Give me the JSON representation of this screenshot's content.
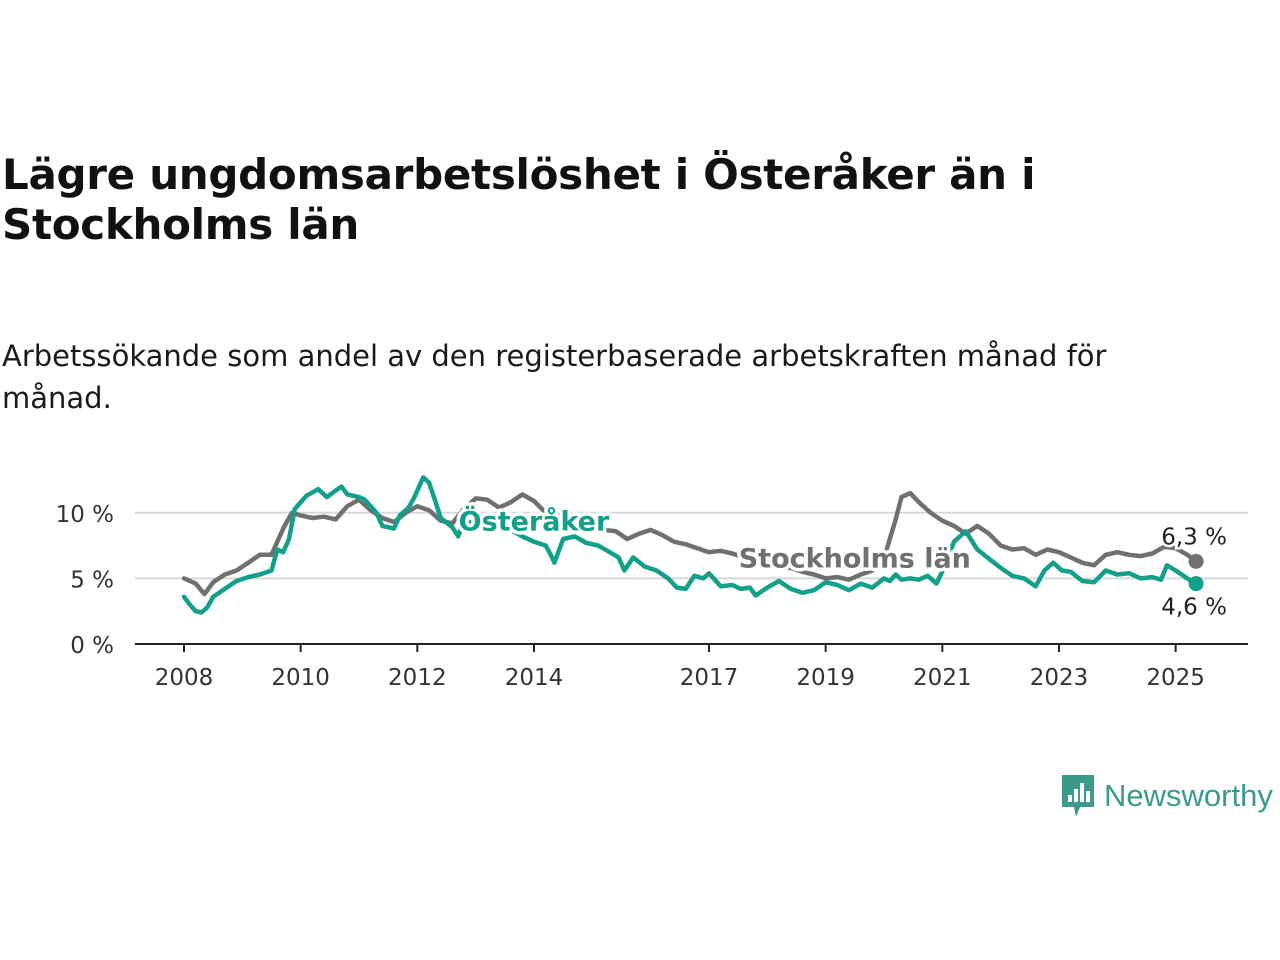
{
  "header": {
    "title": "Lägre ungdomsarbetslöshet i Österåker än i Stockholms län",
    "subtitle": "Arbetssökande som andel av den registerbaserade arbetskraften månad för månad."
  },
  "brand": {
    "name": "Newsworthy",
    "icon": "newsworthy-logo-icon",
    "color": "#3a9a8c"
  },
  "chart_data": {
    "type": "line",
    "xlim": [
      2008,
      2025.4
    ],
    "ylim": [
      0,
      12.5
    ],
    "x_ticks": [
      "2008",
      "2010",
      "2012",
      "2014",
      "2017",
      "2019",
      "2021",
      "2023",
      "2025"
    ],
    "y_ticks": [
      "0 %",
      "5 %",
      "10 %"
    ],
    "grid": true,
    "series": [
      {
        "name": "Stockholms län",
        "color": "#707070",
        "end_label": "6,3 %",
        "points": [
          [
            2008.0,
            5.0
          ],
          [
            2008.2,
            4.6
          ],
          [
            2008.35,
            3.8
          ],
          [
            2008.5,
            4.7
          ],
          [
            2008.7,
            5.3
          ],
          [
            2008.9,
            5.6
          ],
          [
            2009.1,
            6.2
          ],
          [
            2009.3,
            6.8
          ],
          [
            2009.5,
            6.8
          ],
          [
            2009.7,
            8.8
          ],
          [
            2009.85,
            10.0
          ],
          [
            2010.0,
            9.8
          ],
          [
            2010.2,
            9.6
          ],
          [
            2010.4,
            9.7
          ],
          [
            2010.6,
            9.5
          ],
          [
            2010.8,
            10.5
          ],
          [
            2011.0,
            11.0
          ],
          [
            2011.2,
            10.2
          ],
          [
            2011.4,
            9.6
          ],
          [
            2011.6,
            9.3
          ],
          [
            2011.8,
            10.0
          ],
          [
            2012.0,
            10.5
          ],
          [
            2012.2,
            10.2
          ],
          [
            2012.4,
            9.4
          ],
          [
            2012.6,
            9.2
          ],
          [
            2012.8,
            10.3
          ],
          [
            2013.0,
            11.1
          ],
          [
            2013.2,
            11.0
          ],
          [
            2013.4,
            10.4
          ],
          [
            2013.6,
            10.8
          ],
          [
            2013.8,
            11.4
          ],
          [
            2014.0,
            10.9
          ],
          [
            2014.2,
            10.0
          ],
          [
            2014.4,
            9.8
          ],
          [
            2014.6,
            9.6
          ],
          [
            2014.8,
            9.0
          ],
          [
            2015.0,
            8.8
          ],
          [
            2015.2,
            8.7
          ],
          [
            2015.4,
            8.6
          ],
          [
            2015.6,
            8.0
          ],
          [
            2015.8,
            8.4
          ],
          [
            2016.0,
            8.7
          ],
          [
            2016.2,
            8.3
          ],
          [
            2016.4,
            7.8
          ],
          [
            2016.6,
            7.6
          ],
          [
            2016.8,
            7.3
          ],
          [
            2017.0,
            7.0
          ],
          [
            2017.2,
            7.1
          ],
          [
            2017.4,
            6.9
          ],
          [
            2017.6,
            6.6
          ],
          [
            2017.8,
            6.4
          ],
          [
            2018.0,
            6.2
          ],
          [
            2018.2,
            5.9
          ],
          [
            2018.4,
            5.8
          ],
          [
            2018.6,
            5.5
          ],
          [
            2018.8,
            5.3
          ],
          [
            2019.0,
            5.0
          ],
          [
            2019.2,
            5.1
          ],
          [
            2019.4,
            4.9
          ],
          [
            2019.6,
            5.3
          ],
          [
            2019.8,
            5.6
          ],
          [
            2020.0,
            6.5
          ],
          [
            2020.1,
            8.0
          ],
          [
            2020.2,
            9.5
          ],
          [
            2020.3,
            11.2
          ],
          [
            2020.45,
            11.5
          ],
          [
            2020.6,
            10.8
          ],
          [
            2020.8,
            10.0
          ],
          [
            2021.0,
            9.4
          ],
          [
            2021.2,
            9.0
          ],
          [
            2021.4,
            8.4
          ],
          [
            2021.6,
            9.0
          ],
          [
            2021.8,
            8.4
          ],
          [
            2022.0,
            7.5
          ],
          [
            2022.2,
            7.2
          ],
          [
            2022.4,
            7.3
          ],
          [
            2022.6,
            6.8
          ],
          [
            2022.8,
            7.2
          ],
          [
            2023.0,
            7.0
          ],
          [
            2023.2,
            6.6
          ],
          [
            2023.4,
            6.2
          ],
          [
            2023.6,
            6.0
          ],
          [
            2023.8,
            6.8
          ],
          [
            2024.0,
            7.0
          ],
          [
            2024.2,
            6.8
          ],
          [
            2024.4,
            6.7
          ],
          [
            2024.6,
            6.9
          ],
          [
            2024.8,
            7.4
          ],
          [
            2025.0,
            7.3
          ],
          [
            2025.2,
            6.8
          ],
          [
            2025.35,
            6.3
          ]
        ]
      },
      {
        "name": "Österåker",
        "color": "#12a08a",
        "end_label": "4,6 %",
        "points": [
          [
            2008.0,
            3.6
          ],
          [
            2008.1,
            3.0
          ],
          [
            2008.2,
            2.5
          ],
          [
            2008.3,
            2.4
          ],
          [
            2008.4,
            2.8
          ],
          [
            2008.5,
            3.6
          ],
          [
            2008.7,
            4.2
          ],
          [
            2008.9,
            4.8
          ],
          [
            2009.1,
            5.1
          ],
          [
            2009.3,
            5.3
          ],
          [
            2009.5,
            5.6
          ],
          [
            2009.6,
            7.2
          ],
          [
            2009.7,
            7.0
          ],
          [
            2009.8,
            8.0
          ],
          [
            2009.9,
            10.3
          ],
          [
            2010.0,
            10.8
          ],
          [
            2010.1,
            11.3
          ],
          [
            2010.3,
            11.8
          ],
          [
            2010.45,
            11.2
          ],
          [
            2010.6,
            11.7
          ],
          [
            2010.7,
            12.0
          ],
          [
            2010.8,
            11.4
          ],
          [
            2011.0,
            11.2
          ],
          [
            2011.1,
            11.0
          ],
          [
            2011.3,
            10.0
          ],
          [
            2011.4,
            9.0
          ],
          [
            2011.5,
            8.9
          ],
          [
            2011.6,
            8.8
          ],
          [
            2011.7,
            9.8
          ],
          [
            2011.85,
            10.4
          ],
          [
            2011.95,
            11.2
          ],
          [
            2012.1,
            12.7
          ],
          [
            2012.2,
            12.3
          ],
          [
            2012.3,
            11.0
          ],
          [
            2012.4,
            9.6
          ],
          [
            2012.6,
            8.9
          ],
          [
            2012.7,
            8.2
          ],
          [
            2012.8,
            9.5
          ],
          [
            2013.0,
            9.0
          ],
          [
            2013.2,
            8.5
          ],
          [
            2013.4,
            9.4
          ],
          [
            2013.6,
            8.7
          ],
          [
            2013.8,
            8.2
          ],
          [
            2014.0,
            7.8
          ],
          [
            2014.2,
            7.5
          ],
          [
            2014.3,
            6.7
          ],
          [
            2014.35,
            6.2
          ],
          [
            2014.5,
            8.0
          ],
          [
            2014.7,
            8.2
          ],
          [
            2014.9,
            7.7
          ],
          [
            2015.1,
            7.5
          ],
          [
            2015.3,
            7.0
          ],
          [
            2015.45,
            6.6
          ],
          [
            2015.55,
            5.6
          ],
          [
            2015.7,
            6.6
          ],
          [
            2015.9,
            5.9
          ],
          [
            2016.1,
            5.6
          ],
          [
            2016.3,
            5.0
          ],
          [
            2016.45,
            4.3
          ],
          [
            2016.6,
            4.2
          ],
          [
            2016.75,
            5.2
          ],
          [
            2016.9,
            5.0
          ],
          [
            2017.0,
            5.4
          ],
          [
            2017.2,
            4.4
          ],
          [
            2017.4,
            4.5
          ],
          [
            2017.55,
            4.2
          ],
          [
            2017.7,
            4.3
          ],
          [
            2017.8,
            3.7
          ],
          [
            2018.0,
            4.3
          ],
          [
            2018.2,
            4.8
          ],
          [
            2018.4,
            4.2
          ],
          [
            2018.6,
            3.9
          ],
          [
            2018.8,
            4.1
          ],
          [
            2019.0,
            4.7
          ],
          [
            2019.2,
            4.5
          ],
          [
            2019.4,
            4.1
          ],
          [
            2019.6,
            4.6
          ],
          [
            2019.8,
            4.3
          ],
          [
            2020.0,
            5.0
          ],
          [
            2020.1,
            4.8
          ],
          [
            2020.2,
            5.3
          ],
          [
            2020.3,
            4.9
          ],
          [
            2020.45,
            5.0
          ],
          [
            2020.6,
            4.9
          ],
          [
            2020.75,
            5.2
          ],
          [
            2020.9,
            4.6
          ],
          [
            2021.05,
            6.0
          ],
          [
            2021.2,
            7.8
          ],
          [
            2021.4,
            8.6
          ],
          [
            2021.6,
            7.2
          ],
          [
            2021.8,
            6.5
          ],
          [
            2022.0,
            5.8
          ],
          [
            2022.2,
            5.2
          ],
          [
            2022.4,
            5.0
          ],
          [
            2022.6,
            4.4
          ],
          [
            2022.75,
            5.6
          ],
          [
            2022.9,
            6.2
          ],
          [
            2023.05,
            5.6
          ],
          [
            2023.2,
            5.5
          ],
          [
            2023.4,
            4.8
          ],
          [
            2023.6,
            4.7
          ],
          [
            2023.8,
            5.6
          ],
          [
            2024.0,
            5.3
          ],
          [
            2024.2,
            5.4
          ],
          [
            2024.4,
            5.0
          ],
          [
            2024.6,
            5.1
          ],
          [
            2024.75,
            4.9
          ],
          [
            2024.85,
            6.0
          ],
          [
            2025.0,
            5.6
          ],
          [
            2025.2,
            5.0
          ],
          [
            2025.35,
            4.6
          ]
        ]
      }
    ],
    "annotations": [
      {
        "text": "Österåker",
        "series": "Österåker",
        "at_x": 2014.0,
        "at_y": 9.4
      },
      {
        "text": "Stockholms län",
        "series": "Stockholms län",
        "at_x": 2019.5,
        "at_y": 6.6
      }
    ]
  }
}
